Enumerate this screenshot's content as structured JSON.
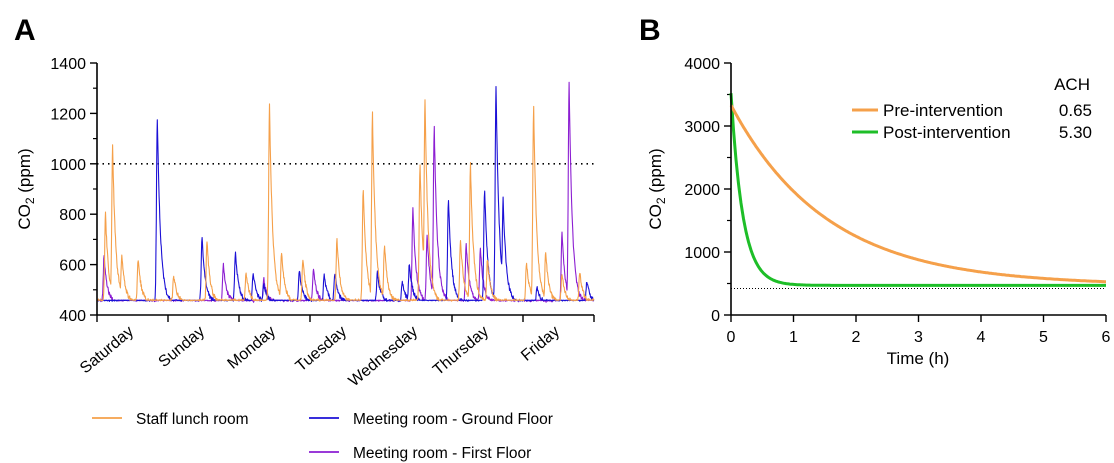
{
  "panels": {
    "a": "A",
    "b": "B"
  },
  "chart_data": [
    {
      "type": "line",
      "panel": "A",
      "ylabel_main": "CO",
      "ylabel_sub": "2",
      "ylabel_unit": " (ppm)",
      "ylim": [
        400,
        1400
      ],
      "yticks": [
        400,
        600,
        800,
        1000,
        1200,
        1400
      ],
      "categories": [
        "Saturday",
        "Sunday",
        "Monday",
        "Tuesday",
        "Wednesday",
        "Thursday",
        "Friday"
      ],
      "xlim_days": 7,
      "reference_line": {
        "y": 1000,
        "style": "dotted"
      },
      "baseline_ppm": 450,
      "colors": {
        "staff": "#f5a04a",
        "ground": "#1b10d6",
        "first": "#8c1ed2"
      },
      "series": [
        {
          "name": "Staff lunch room",
          "key": "staff",
          "peaks": [
            [
              0.12,
              800
            ],
            [
              0.22,
              1070
            ],
            [
              0.35,
              640
            ],
            [
              0.58,
              620
            ],
            [
              1.08,
              560
            ],
            [
              1.55,
              690
            ],
            [
              2.1,
              570
            ],
            [
              2.43,
              1230
            ],
            [
              2.6,
              650
            ],
            [
              2.9,
              620
            ],
            [
              3.38,
              700
            ],
            [
              3.75,
              900
            ],
            [
              3.88,
              1200
            ],
            [
              4.05,
              680
            ],
            [
              4.55,
              1000
            ],
            [
              4.62,
              1260
            ],
            [
              5.12,
              700
            ],
            [
              5.26,
              1000
            ],
            [
              5.5,
              620
            ],
            [
              6.05,
              610
            ],
            [
              6.15,
              1230
            ],
            [
              6.32,
              650
            ],
            [
              6.55,
              560
            ],
            [
              6.8,
              570
            ]
          ]
        },
        {
          "name": "Meeting room - Ground Floor",
          "key": "ground",
          "peaks": [
            [
              0.85,
              1180
            ],
            [
              1.48,
              710
            ],
            [
              1.95,
              650
            ],
            [
              2.2,
              570
            ],
            [
              2.35,
              520
            ],
            [
              2.85,
              580
            ],
            [
              3.2,
              560
            ],
            [
              3.35,
              570
            ],
            [
              3.95,
              570
            ],
            [
              4.3,
              530
            ],
            [
              4.4,
              600
            ],
            [
              4.95,
              860
            ],
            [
              5.46,
              900
            ],
            [
              5.62,
              1310
            ],
            [
              5.72,
              860
            ],
            [
              6.2,
              510
            ],
            [
              6.9,
              530
            ]
          ]
        },
        {
          "name": "Meeting room - First Floor",
          "key": "first",
          "peaks": [
            [
              0.1,
              630
            ],
            [
              1.78,
              600
            ],
            [
              2.35,
              540
            ],
            [
              3.05,
              580
            ],
            [
              4.45,
              820
            ],
            [
              4.65,
              710
            ],
            [
              4.75,
              1150
            ],
            [
              5.2,
              680
            ],
            [
              5.4,
              660
            ],
            [
              6.55,
              720
            ],
            [
              6.65,
              1320
            ]
          ]
        }
      ]
    },
    {
      "type": "line",
      "panel": "B",
      "xlabel": "Time (h)",
      "ylabel_main": "CO",
      "ylabel_sub": "2",
      "ylabel_unit": " (ppm)",
      "xlim": [
        0,
        6
      ],
      "ylim": [
        0,
        4000
      ],
      "xticks": [
        0,
        1,
        2,
        3,
        4,
        5,
        6
      ],
      "yticks": [
        0,
        1000,
        2000,
        3000,
        4000
      ],
      "background_ppm": 420,
      "legend": {
        "header": "ACH",
        "position": "top-right"
      },
      "series": [
        {
          "name": "Pre-intervention",
          "ach": "0.65",
          "ach_value": 0.65,
          "c0": 3330,
          "color": "#f5a04a"
        },
        {
          "name": "Post-intervention",
          "ach": "5.30",
          "ach_value": 5.3,
          "c0": 3520,
          "color": "#1ebe28"
        }
      ]
    }
  ]
}
